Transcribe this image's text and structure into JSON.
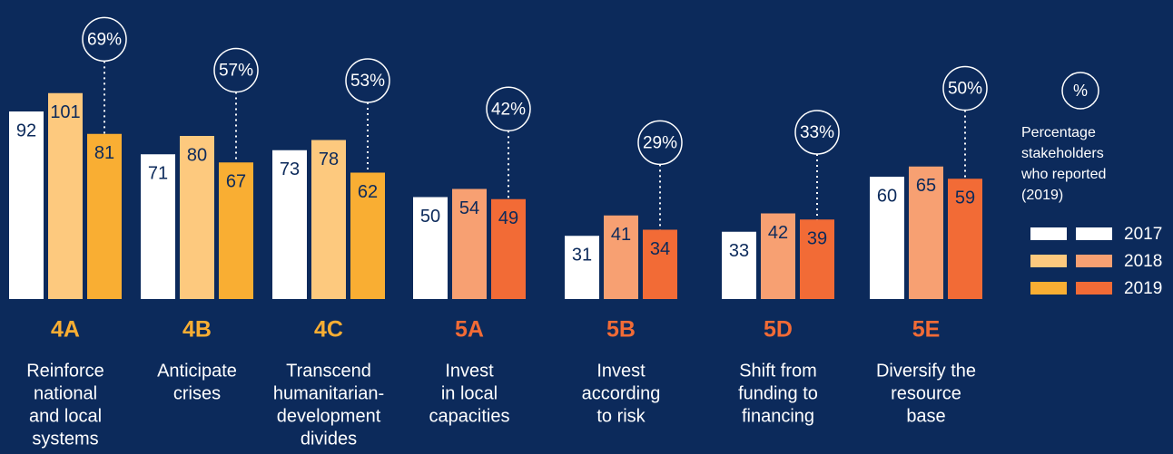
{
  "chart_data": {
    "type": "bar",
    "categories": [
      "4A",
      "4B",
      "4C",
      "5A",
      "5B",
      "5D",
      "5E"
    ],
    "category_colors": [
      "#f9ae33",
      "#f9ae33",
      "#f9ae33",
      "#f26b36",
      "#f26b36",
      "#f26b36",
      "#f26b36"
    ],
    "descriptions": [
      [
        "Reinforce",
        "national",
        "and local",
        "systems"
      ],
      [
        "Anticipate",
        "crises"
      ],
      [
        "Transcend",
        "humanitarian-",
        "development",
        "divides"
      ],
      [
        "Invest",
        "in local",
        "capacities"
      ],
      [
        "Invest",
        "according",
        "to risk"
      ],
      [
        "Shift from",
        "funding to",
        "financing"
      ],
      [
        "Diversify the",
        "resource",
        "base"
      ]
    ],
    "series": [
      {
        "name": "2017",
        "colors": [
          "#ffffff",
          "#ffffff",
          "#ffffff",
          "#ffffff",
          "#ffffff",
          "#ffffff",
          "#ffffff"
        ],
        "values": [
          92,
          71,
          73,
          50,
          31,
          33,
          60
        ]
      },
      {
        "name": "2018",
        "colors": [
          "#fdc97e",
          "#fdc97e",
          "#fdc97e",
          "#f7a072",
          "#f7a072",
          "#f7a072",
          "#f7a072"
        ],
        "values": [
          101,
          80,
          78,
          54,
          41,
          42,
          65
        ]
      },
      {
        "name": "2019",
        "colors": [
          "#f9ae33",
          "#f9ae33",
          "#f9ae33",
          "#f26b36",
          "#f26b36",
          "#f26b36",
          "#f26b36"
        ],
        "values": [
          81,
          67,
          62,
          49,
          34,
          39,
          59
        ]
      }
    ],
    "percentages": {
      "values": [
        69,
        57,
        53,
        42,
        29,
        33,
        50
      ],
      "value_labels": [
        "69%",
        "57%",
        "53%",
        "42%",
        "29%",
        "33%",
        "50%"
      ]
    },
    "legend": {
      "symbol": "%",
      "note": [
        "Percentage",
        "stakeholders",
        "who reported",
        "(2019)"
      ]
    }
  }
}
